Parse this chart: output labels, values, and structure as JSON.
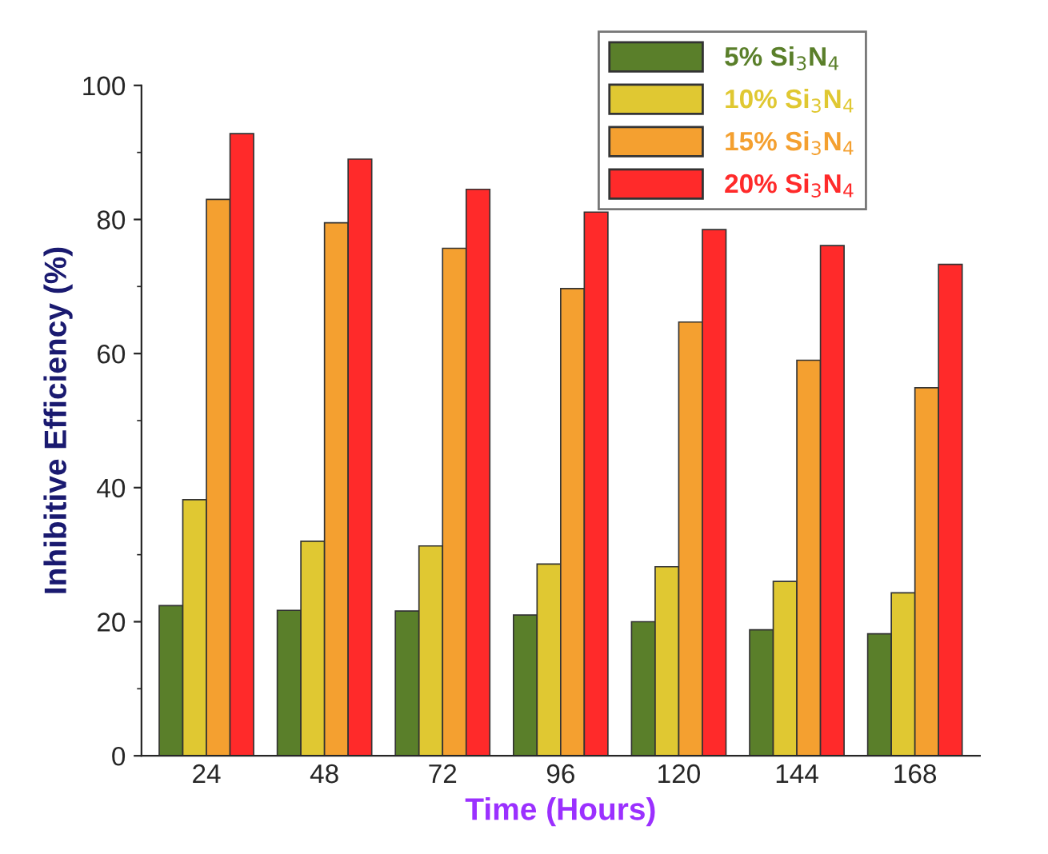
{
  "chart_data": {
    "type": "bar",
    "xlabel": "Time (Hours)",
    "ylabel": "Inhibitive Efficiency (%)",
    "categories": [
      "24",
      "48",
      "72",
      "96",
      "120",
      "144",
      "168"
    ],
    "series": [
      {
        "name": "5% Si$_{3}$N$_{4}$",
        "color": "#5a7f2a",
        "values": [
          22.4,
          21.7,
          21.6,
          21.0,
          20.0,
          18.8,
          18.2
        ]
      },
      {
        "name": "10% Si$_{3}$N$_{4}$",
        "color": "#e0c832",
        "values": [
          38.2,
          32.0,
          31.3,
          28.6,
          28.2,
          26.0,
          24.3
        ]
      },
      {
        "name": "15% Si$_{3}$N$_{4}$",
        "color": "#f4a030",
        "values": [
          83.0,
          79.5,
          75.7,
          69.7,
          64.7,
          59.0,
          54.9
        ]
      },
      {
        "name": "20% Si$_{3}$N$_{4}$",
        "color": "#ff2a2a",
        "values": [
          92.8,
          89.0,
          84.5,
          81.1,
          78.5,
          76.1,
          73.3
        ]
      }
    ],
    "ylim": [
      0,
      100
    ],
    "yticks": [
      0,
      20,
      40,
      60,
      80,
      100
    ],
    "grid": false,
    "legend": "top right"
  }
}
